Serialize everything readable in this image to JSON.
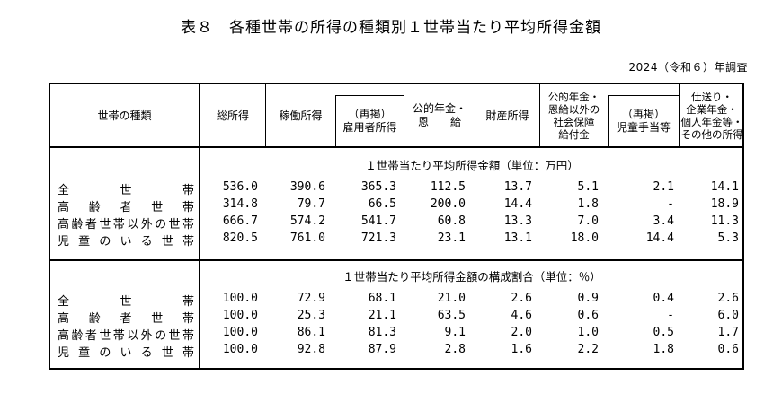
{
  "title": "表８　各種世帯の所得の種類別１世帯当たり平均所得金額",
  "survey": "2024（令和６）年調査",
  "headers": {
    "household_type": "世帯の種類",
    "total_income": "総所得",
    "employment_income": "稼働所得",
    "employee_income": "（再掲）\n雇用者所得",
    "public_pension": "公的年金・\n恩　　給",
    "property_income": "財産所得",
    "social_security": "公的年金・\n恩給以外の\n社会保障\n給付金",
    "child_allowance": "（再掲）\n児童手当等",
    "other_income": "仕送り・\n企業年金・\n個人年金等・\nその他の所得"
  },
  "sections": [
    {
      "title": "１世帯当たり平均所得金額（単位：万円）",
      "rows": [
        {
          "label": "全世帯",
          "values": [
            "536.0",
            "390.6",
            "365.3",
            "112.5",
            "13.7",
            "5.1",
            "2.1",
            "14.1"
          ]
        },
        {
          "label": "高齢者世帯",
          "values": [
            "314.8",
            "79.7",
            "66.5",
            "200.0",
            "14.4",
            "1.8",
            "-",
            "18.9"
          ]
        },
        {
          "label": "高齢者世帯以外の世帯",
          "values": [
            "666.7",
            "574.2",
            "541.7",
            "60.8",
            "13.3",
            "7.0",
            "3.4",
            "11.3"
          ]
        },
        {
          "label": "児童のいる世帯",
          "values": [
            "820.5",
            "761.0",
            "721.3",
            "23.1",
            "13.1",
            "18.0",
            "14.4",
            "5.3"
          ]
        }
      ]
    },
    {
      "title": "１世帯当たり平均所得金額の構成割合（単位：％）",
      "rows": [
        {
          "label": "全世帯",
          "values": [
            "100.0",
            "72.9",
            "68.1",
            "21.0",
            "2.6",
            "0.9",
            "0.4",
            "2.6"
          ]
        },
        {
          "label": "高齢者世帯",
          "values": [
            "100.0",
            "25.3",
            "21.1",
            "63.5",
            "4.6",
            "0.6",
            "-",
            "6.0"
          ]
        },
        {
          "label": "高齢者世帯以外の世帯",
          "values": [
            "100.0",
            "86.1",
            "81.3",
            "9.1",
            "2.0",
            "1.0",
            "0.5",
            "1.7"
          ]
        },
        {
          "label": "児童のいる世帯",
          "values": [
            "100.0",
            "92.8",
            "87.9",
            "2.8",
            "1.6",
            "2.2",
            "1.8",
            "0.6"
          ]
        }
      ]
    }
  ]
}
